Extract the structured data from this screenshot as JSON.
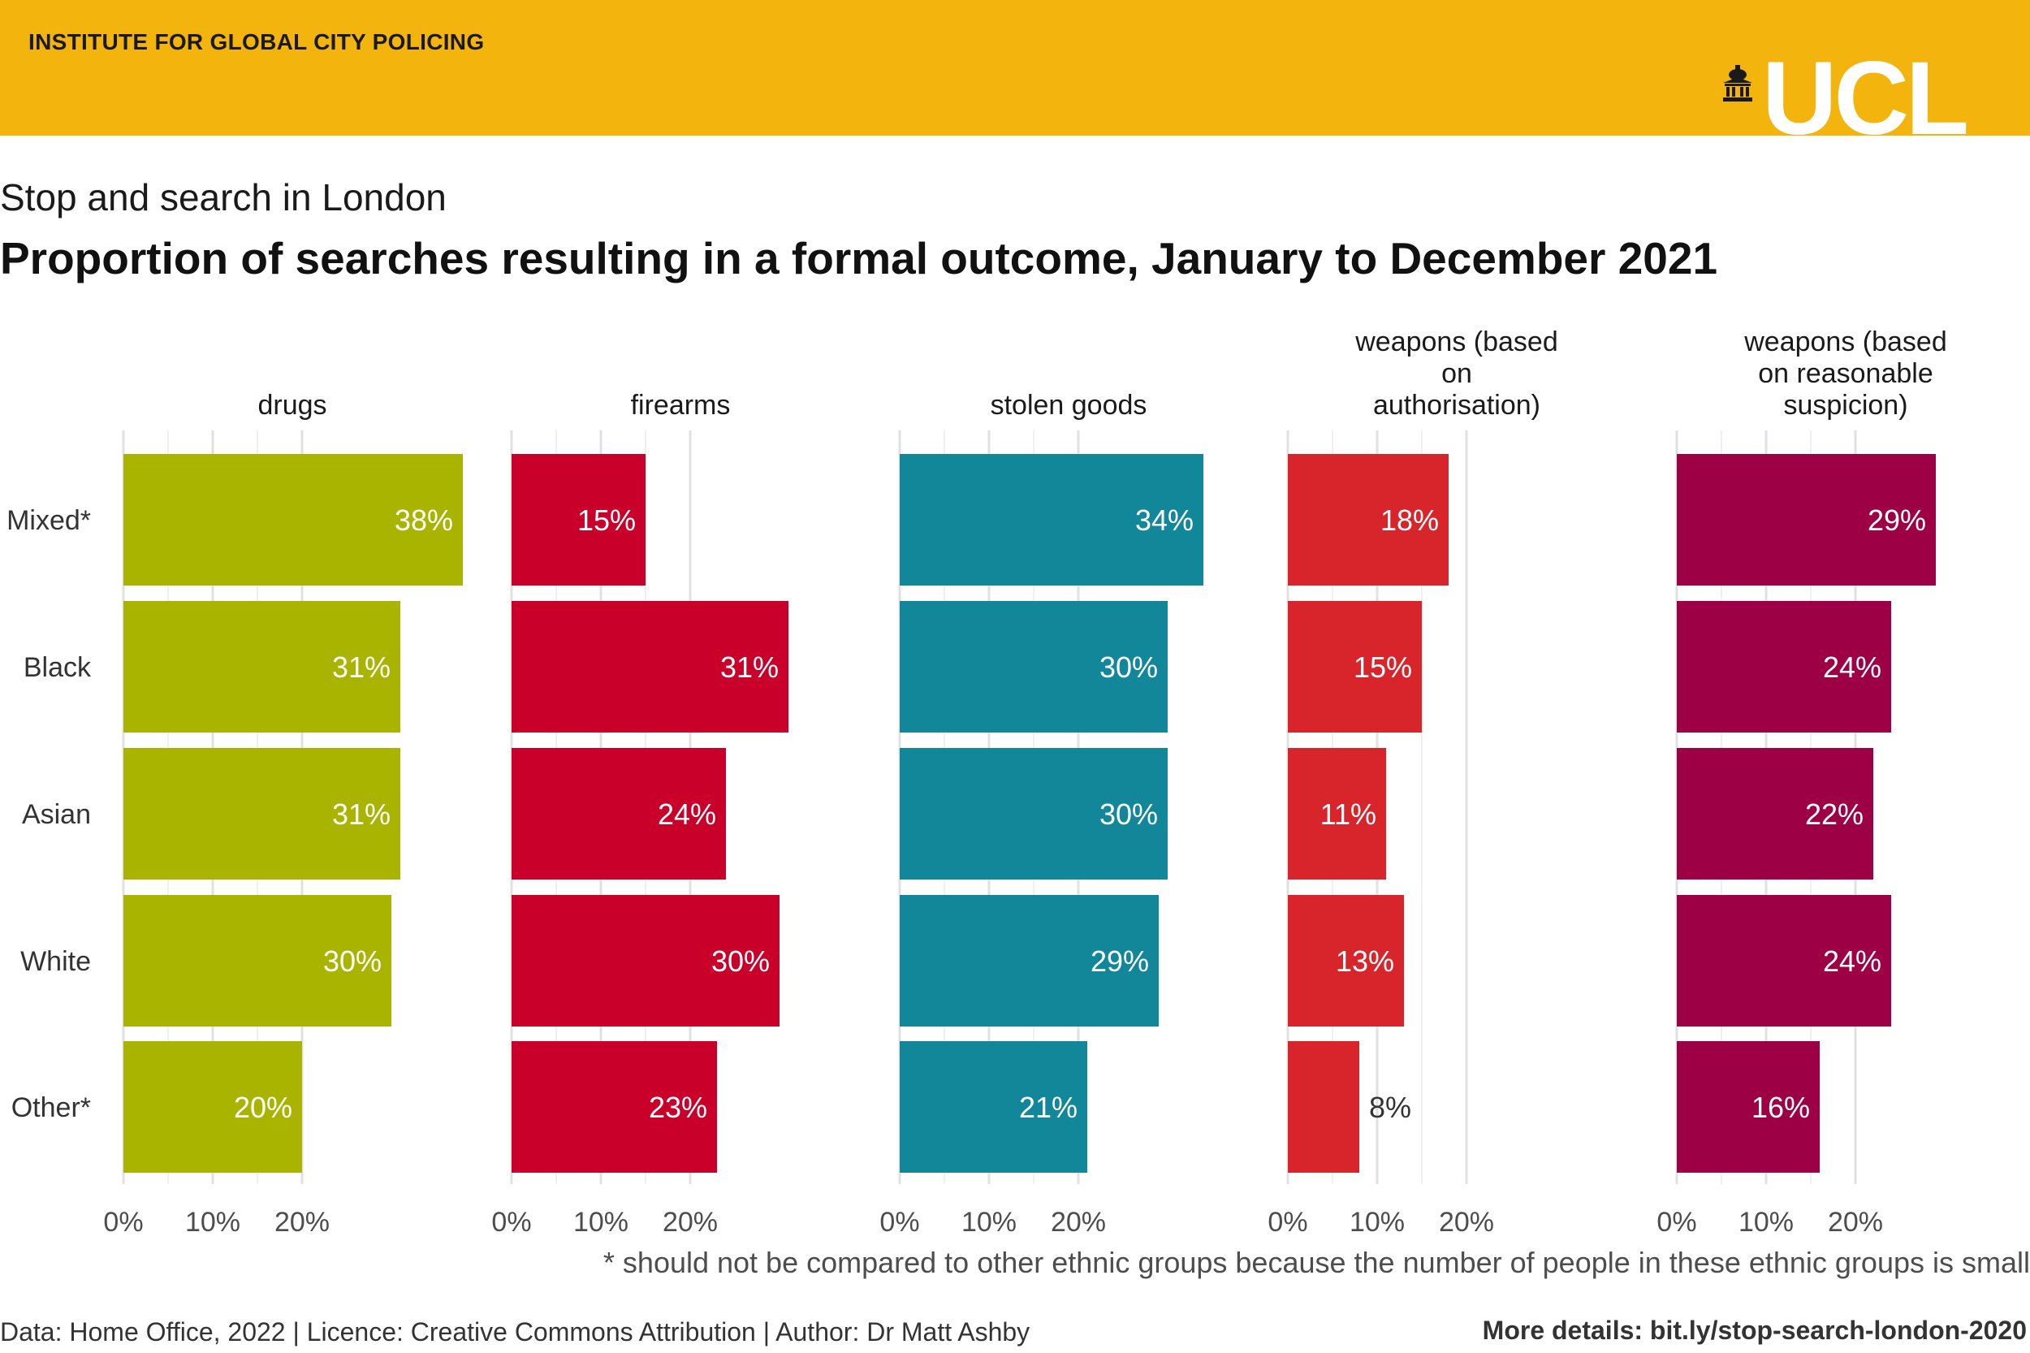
{
  "header": {
    "organisation": "INSTITUTE FOR GLOBAL CITY POLICING",
    "logo_text": "UCL",
    "background_color": "#f2b40d"
  },
  "subtitle": "Stop and search in London",
  "title": "Proportion of searches resulting in a formal outcome, January to December 2021",
  "footnote": "* should not be compared to other ethnic groups because the number of people in these ethnic groups is small",
  "credits": {
    "left": "Data: Home Office, 2022 | Licence: Creative Commons Attribution | Author: Dr Matt Ashby",
    "right": "More details: bit.ly/stop-search-london-2020"
  },
  "chart_data": {
    "type": "bar",
    "orientation": "horizontal",
    "layout": "small-multiples",
    "categories": [
      "Mixed*",
      "Black",
      "Asian",
      "White",
      "Other*"
    ],
    "xlim": [
      0,
      40
    ],
    "x_ticks": [
      "0%",
      "10%",
      "20%"
    ],
    "x_tick_values": [
      0,
      10,
      20
    ],
    "grid": true,
    "legend": "none",
    "series": [
      {
        "name": "drugs",
        "title_lines": [
          "drugs"
        ],
        "color": "#a8b400",
        "values": [
          38,
          31,
          31,
          30,
          20
        ],
        "labels": [
          "38%",
          "31%",
          "31%",
          "30%",
          "20%"
        ]
      },
      {
        "name": "firearms",
        "title_lines": [
          "firearms"
        ],
        "color": "#c8002a",
        "values": [
          15,
          31,
          24,
          30,
          23
        ],
        "labels": [
          "15%",
          "31%",
          "24%",
          "30%",
          "23%"
        ]
      },
      {
        "name": "stolen goods",
        "title_lines": [
          "stolen goods"
        ],
        "color": "#12879a",
        "values": [
          34,
          30,
          30,
          29,
          21
        ],
        "labels": [
          "34%",
          "30%",
          "30%",
          "29%",
          "21%"
        ]
      },
      {
        "name": "weapons (based on authorisation)",
        "title_lines": [
          "weapons (based",
          "on",
          "authorisation)"
        ],
        "color": "#d7252b",
        "values": [
          18,
          15,
          11,
          13,
          8
        ],
        "labels": [
          "18%",
          "15%",
          "11%",
          "13%",
          "8%"
        ]
      },
      {
        "name": "weapons (based on reasonable suspicion)",
        "title_lines": [
          "weapons (based",
          "on reasonable",
          "suspicion)"
        ],
        "color": "#9e0046",
        "values": [
          29,
          24,
          22,
          24,
          16
        ],
        "labels": [
          "29%",
          "24%",
          "22%",
          "24%",
          "16%"
        ]
      }
    ]
  }
}
